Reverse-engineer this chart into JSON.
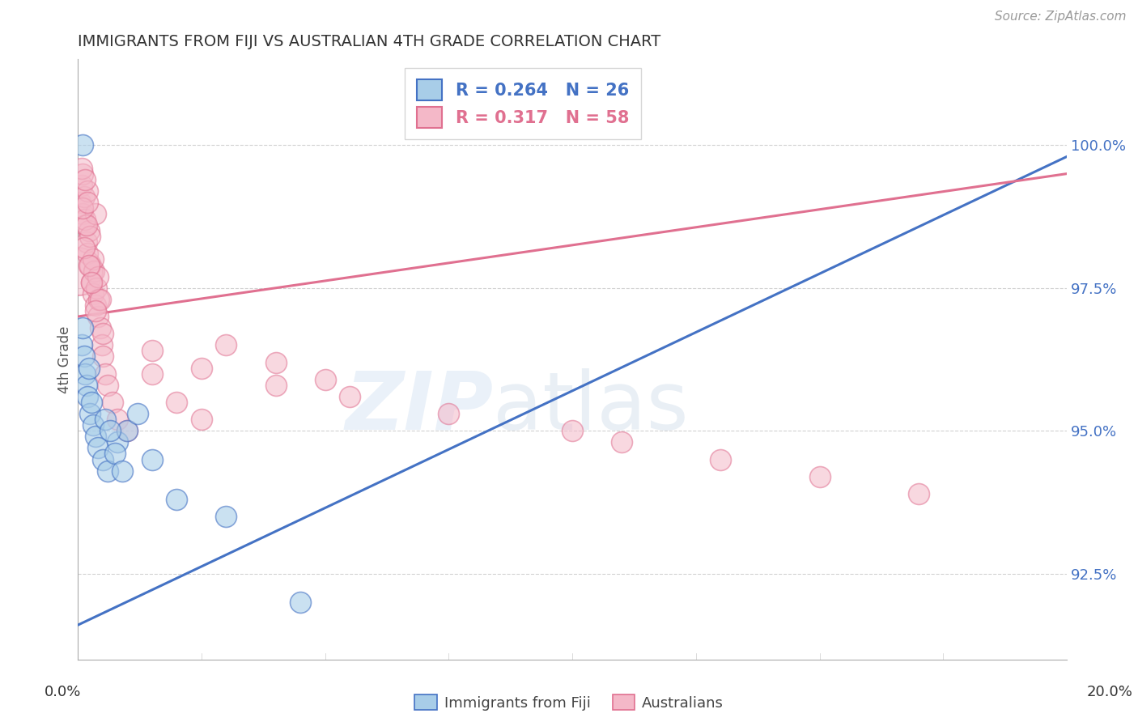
{
  "title": "IMMIGRANTS FROM FIJI VS AUSTRALIAN 4TH GRADE CORRELATION CHART",
  "source": "Source: ZipAtlas.com",
  "ylabel": "4th Grade",
  "xlim": [
    0.0,
    20.0
  ],
  "ylim": [
    91.0,
    101.5
  ],
  "yticks": [
    92.5,
    95.0,
    97.5,
    100.0
  ],
  "ytick_labels": [
    "92.5%",
    "95.0%",
    "97.5%",
    "100.0%"
  ],
  "legend_blue_label": "Immigrants from Fiji",
  "legend_pink_label": "Australians",
  "R_blue": "0.264",
  "N_blue": "26",
  "R_pink": "0.317",
  "N_pink": "58",
  "blue_fill": "#a8cde8",
  "blue_edge": "#4472c4",
  "blue_line": "#4472c4",
  "pink_fill": "#f4b8c8",
  "pink_edge": "#e07090",
  "pink_line": "#e07090",
  "background_color": "#ffffff",
  "watermark_zip": "ZIP",
  "watermark_atlas": "atlas",
  "blue_x": [
    0.08,
    0.1,
    0.12,
    0.15,
    0.18,
    0.2,
    0.22,
    0.25,
    0.28,
    0.3,
    0.35,
    0.4,
    0.5,
    0.6,
    0.8,
    1.0,
    1.5,
    2.0,
    3.0,
    4.5,
    0.55,
    0.65,
    0.75,
    0.9,
    1.2,
    0.1
  ],
  "blue_y": [
    96.5,
    96.8,
    96.3,
    96.0,
    95.8,
    95.6,
    96.1,
    95.3,
    95.5,
    95.1,
    94.9,
    94.7,
    94.5,
    94.3,
    94.8,
    95.0,
    94.5,
    93.8,
    93.5,
    92.0,
    95.2,
    95.0,
    94.6,
    94.3,
    95.3,
    100.0
  ],
  "pink_x": [
    0.05,
    0.08,
    0.1,
    0.12,
    0.15,
    0.18,
    0.2,
    0.22,
    0.25,
    0.28,
    0.3,
    0.33,
    0.35,
    0.38,
    0.4,
    0.43,
    0.45,
    0.48,
    0.5,
    0.55,
    0.6,
    0.7,
    0.8,
    1.0,
    1.5,
    2.0,
    2.5,
    3.0,
    4.0,
    5.0,
    0.1,
    0.15,
    0.2,
    0.25,
    0.3,
    0.35,
    0.4,
    0.45,
    0.12,
    0.18,
    0.22,
    0.28,
    0.35,
    0.5,
    1.5,
    2.5,
    4.0,
    5.5,
    7.5,
    10.0,
    11.0,
    13.0,
    15.0,
    17.0,
    0.08,
    0.1,
    0.15,
    0.2
  ],
  "pink_y": [
    99.0,
    99.3,
    98.8,
    99.1,
    98.6,
    98.3,
    98.1,
    98.5,
    97.9,
    97.6,
    97.4,
    97.8,
    97.2,
    97.5,
    97.0,
    97.3,
    96.8,
    96.5,
    96.3,
    96.0,
    95.8,
    95.5,
    95.2,
    95.0,
    96.0,
    95.5,
    95.2,
    96.5,
    96.2,
    95.9,
    99.5,
    98.7,
    99.2,
    98.4,
    98.0,
    98.8,
    97.7,
    97.3,
    98.2,
    98.6,
    97.9,
    97.6,
    97.1,
    96.7,
    96.4,
    96.1,
    95.8,
    95.6,
    95.3,
    95.0,
    94.8,
    94.5,
    94.2,
    93.9,
    99.6,
    98.9,
    99.4,
    99.0
  ],
  "pink_large_x": [
    0.02
  ],
  "pink_large_y": [
    97.8
  ]
}
